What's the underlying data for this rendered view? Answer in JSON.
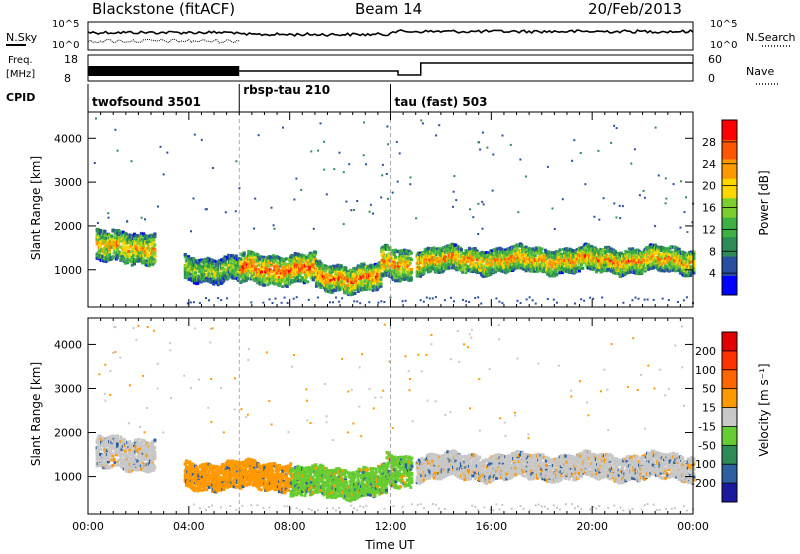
{
  "header": {
    "site": "Blackstone (fitACF)",
    "beam": "Beam 14",
    "date": "20/Feb/2013"
  },
  "status_panels": {
    "nsky_label": "N.Sky",
    "nsearch_label": "N.Search",
    "freq_label_1": "Freq.",
    "freq_label_2": "[MHz]",
    "nave_label": "Nave",
    "cpid_label": "CPID",
    "noise_left_ticks": [
      "10^5",
      "10^0"
    ],
    "noise_right_ticks": [
      "10^5",
      "10^0"
    ],
    "freq_ticks": [
      "18",
      "8"
    ],
    "nave_ticks": [
      "60",
      "0"
    ],
    "cpid_segments": [
      {
        "name": "twofsound 3501",
        "start_hour": 0,
        "end_hour": 6.0
      },
      {
        "name": "rbsp-tau 210",
        "start_hour": 6.0,
        "end_hour": 12.0
      },
      {
        "name": "tau (fast) 503",
        "start_hour": 12.0,
        "end_hour": 24.0
      }
    ]
  },
  "chart_data": [
    {
      "type": "heatmap",
      "title": "",
      "ylabel": "Slant Range [km]",
      "xlabel": "",
      "xlim_hours": [
        0,
        24
      ],
      "ylim": [
        150,
        4600
      ],
      "yticks": [
        "1000",
        "2000",
        "3000",
        "4000"
      ],
      "colorbar": {
        "label": "Power [dB]",
        "ticks": [
          "28",
          "24",
          "20",
          "16",
          "12",
          "8",
          "4"
        ],
        "range": [
          0,
          30
        ],
        "colors": [
          "#0000ff",
          "#2a4fa0",
          "#2e8b57",
          "#3cb043",
          "#7ccd2e",
          "#ffd700",
          "#ff9900",
          "#ff5500",
          "#ff0000"
        ]
      },
      "bands": [
        {
          "start": 0.3,
          "end": 2.6,
          "center": 1550,
          "width": 700,
          "level": 0.7
        },
        {
          "start": 3.8,
          "end": 6.0,
          "center": 1050,
          "width": 550,
          "level": 0.55
        },
        {
          "start": 6.0,
          "end": 9.0,
          "center": 1050,
          "width": 650,
          "level": 0.85
        },
        {
          "start": 9.0,
          "end": 11.6,
          "center": 850,
          "width": 600,
          "level": 0.8
        },
        {
          "start": 11.6,
          "end": 12.8,
          "center": 1150,
          "width": 700,
          "level": 0.75
        },
        {
          "start": 13.0,
          "end": 24.0,
          "center": 1250,
          "width": 550,
          "level": 0.75
        }
      ]
    },
    {
      "type": "heatmap",
      "title": "",
      "ylabel": "Slant Range [km]",
      "xlabel": "Time UT",
      "xlim_hours": [
        0,
        24
      ],
      "ylim": [
        150,
        4600
      ],
      "yticks": [
        "1000",
        "2000",
        "3000",
        "4000"
      ],
      "xticks": [
        "00:00",
        "04:00",
        "08:00",
        "12:00",
        "16:00",
        "20:00",
        "00:00"
      ],
      "colorbar": {
        "label": "Velocity [m s⁻¹]",
        "ticks": [
          "200",
          "100",
          "50",
          "15",
          "-15",
          "-50",
          "-100",
          "-200"
        ],
        "colors": [
          "#1a1aa0",
          "#2e5f9f",
          "#2e8b57",
          "#66cc33",
          "#c8c8c8",
          "#ff9900",
          "#ff6600",
          "#ff3300",
          "#e00000"
        ]
      },
      "bands": [
        {
          "start": 0.3,
          "end": 2.6,
          "center": 1550,
          "width": 700,
          "color": "#c8c8c8"
        },
        {
          "start": 3.8,
          "end": 8.0,
          "center": 1050,
          "width": 600,
          "color": "#ff9900"
        },
        {
          "start": 8.0,
          "end": 11.8,
          "center": 900,
          "width": 650,
          "color": "#66cc33"
        },
        {
          "start": 11.8,
          "end": 12.8,
          "center": 1150,
          "width": 700,
          "color": "#66cc33"
        },
        {
          "start": 13.0,
          "end": 24.0,
          "center": 1250,
          "width": 550,
          "color": "#c8c8c8"
        }
      ]
    }
  ]
}
